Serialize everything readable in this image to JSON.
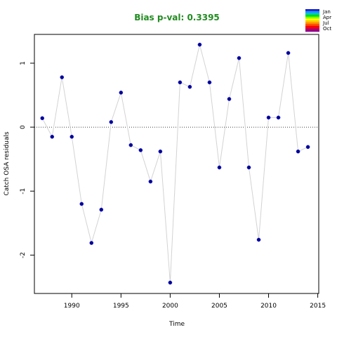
{
  "chart_data": {
    "type": "scatter",
    "title": "Bias p-val: 0.3395",
    "title_color": "#228B22",
    "xlabel": "Time",
    "ylabel": "Catch OSA residuals",
    "xlim": [
      1986.2,
      2015.1
    ],
    "ylim": [
      -2.6,
      1.45
    ],
    "xticks": [
      1990,
      1995,
      2000,
      2005,
      2010,
      2015
    ],
    "yticks": [
      -2,
      -1,
      0,
      1
    ],
    "reference_line": 0,
    "point_color": "#00008B",
    "line_color": "#d3d3d3",
    "legend": {
      "labels": [
        "Jan",
        "Apr",
        "Jul",
        "Oct"
      ],
      "colors": [
        "#1c1cc8",
        "#1e90ff",
        "#00c8c8",
        "#00e000",
        "#7fff00",
        "#ffff00",
        "#ffc800",
        "#ff8c00",
        "#ff4500",
        "#ff0000",
        "#c80050",
        "#8b008b"
      ]
    },
    "points": [
      {
        "x": 1987,
        "y": 0.14
      },
      {
        "x": 1988,
        "y": -0.15
      },
      {
        "x": 1989,
        "y": 0.78
      },
      {
        "x": 1990,
        "y": -0.15
      },
      {
        "x": 1991,
        "y": -1.2
      },
      {
        "x": 1992,
        "y": -1.81
      },
      {
        "x": 1993,
        "y": -1.29
      },
      {
        "x": 1994,
        "y": 0.08
      },
      {
        "x": 1995,
        "y": 0.54
      },
      {
        "x": 1996,
        "y": -0.28
      },
      {
        "x": 1997,
        "y": -0.36
      },
      {
        "x": 1998,
        "y": -0.85
      },
      {
        "x": 1999,
        "y": -0.38
      },
      {
        "x": 2000,
        "y": -2.43
      },
      {
        "x": 2001,
        "y": 0.7
      },
      {
        "x": 2002,
        "y": 0.63
      },
      {
        "x": 2003,
        "y": 1.29
      },
      {
        "x": 2004,
        "y": 0.7
      },
      {
        "x": 2005,
        "y": -0.63
      },
      {
        "x": 2006,
        "y": 0.44
      },
      {
        "x": 2007,
        "y": 1.08
      },
      {
        "x": 2008,
        "y": -0.63
      },
      {
        "x": 2009,
        "y": -1.76
      },
      {
        "x": 2010,
        "y": 0.15
      },
      {
        "x": 2011,
        "y": 0.15
      },
      {
        "x": 2012,
        "y": 1.16
      },
      {
        "x": 2013,
        "y": -0.38
      },
      {
        "x": 2014,
        "y": -0.31
      }
    ]
  }
}
